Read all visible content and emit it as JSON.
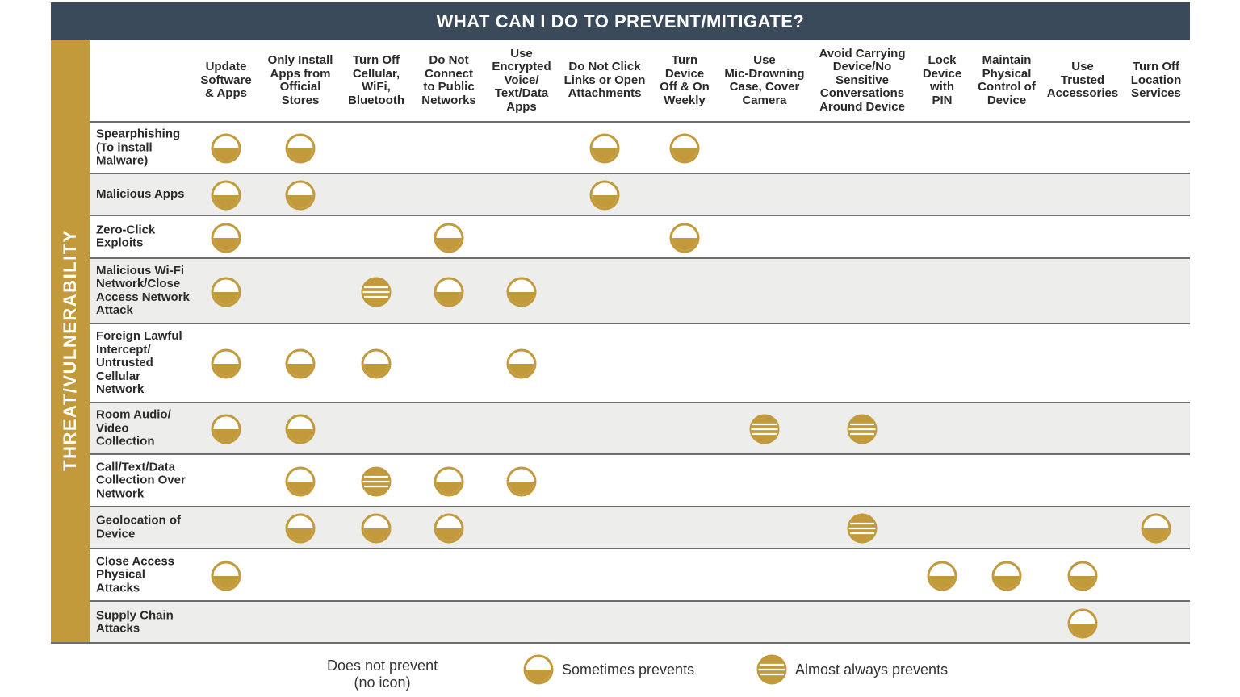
{
  "title": "WHAT CAN I DO TO PREVENT/MITIGATE?",
  "side_label": "THREAT/VULNERABILITY",
  "columns": [
    "Update\nSoftware\n& Apps",
    "Only Install\nApps from\nOfficial\nStores",
    "Turn Off\nCellular,\nWiFi,\nBluetooth",
    "Do Not\nConnect\nto Public\nNetworks",
    "Use\nEncrypted\nVoice/\nText/Data\nApps",
    "Do Not Click\nLinks or Open\nAttachments",
    "Turn\nDevice\nOff & On\nWeekly",
    "Use\nMic-Drowning\nCase, Cover\nCamera",
    "Avoid Carrying\nDevice/No\nSensitive\nConversations\nAround Device",
    "Lock\nDevice\nwith\nPIN",
    "Maintain\nPhysical\nControl of\nDevice",
    "Use\nTrusted\nAccessories",
    "Turn Off\nLocation\nServices"
  ],
  "rows": [
    {
      "label": "Spearphishing\n(To install\nMalware)",
      "cells": [
        1,
        1,
        0,
        0,
        0,
        1,
        1,
        0,
        0,
        0,
        0,
        0,
        0
      ]
    },
    {
      "label": "Malicious Apps",
      "cells": [
        1,
        1,
        0,
        0,
        0,
        1,
        0,
        0,
        0,
        0,
        0,
        0,
        0
      ]
    },
    {
      "label": "Zero-Click\nExploits",
      "cells": [
        1,
        0,
        0,
        1,
        0,
        0,
        1,
        0,
        0,
        0,
        0,
        0,
        0
      ]
    },
    {
      "label": "Malicious Wi-Fi\nNetwork/Close\nAccess Network\nAttack",
      "cells": [
        1,
        0,
        2,
        1,
        1,
        0,
        0,
        0,
        0,
        0,
        0,
        0,
        0
      ]
    },
    {
      "label": "Foreign Lawful\nIntercept/\nUntrusted\nCellular\nNetwork",
      "cells": [
        1,
        1,
        1,
        0,
        1,
        0,
        0,
        0,
        0,
        0,
        0,
        0,
        0
      ]
    },
    {
      "label": "Room Audio/\nVideo\nCollection",
      "cells": [
        1,
        1,
        0,
        0,
        0,
        0,
        0,
        2,
        2,
        0,
        0,
        0,
        0
      ]
    },
    {
      "label": "Call/Text/Data\nCollection Over\nNetwork",
      "cells": [
        0,
        1,
        2,
        1,
        1,
        0,
        0,
        0,
        0,
        0,
        0,
        0,
        0
      ]
    },
    {
      "label": "Geolocation of\nDevice",
      "cells": [
        0,
        1,
        1,
        1,
        0,
        0,
        0,
        0,
        2,
        0,
        0,
        0,
        1
      ]
    },
    {
      "label": "Close Access\nPhysical\nAttacks",
      "cells": [
        1,
        0,
        0,
        0,
        0,
        0,
        0,
        0,
        0,
        1,
        1,
        1,
        0
      ]
    },
    {
      "label": "Supply Chain\nAttacks",
      "cells": [
        0,
        0,
        0,
        0,
        0,
        0,
        0,
        0,
        0,
        0,
        0,
        1,
        0
      ]
    }
  ],
  "legend": {
    "none": "Does not prevent\n(no icon)",
    "sometimes": "Sometimes prevents",
    "almost": "Almost always prevents"
  },
  "colors": {
    "header_bg": "#3b4a5a",
    "accent_gold": "#c39a3b",
    "row_shade": "#ededec",
    "rule": "#6e6e6e"
  }
}
